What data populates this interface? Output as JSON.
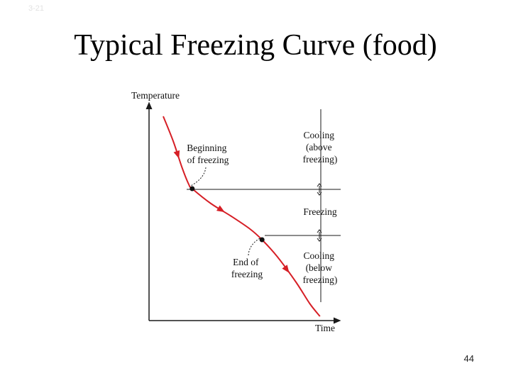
{
  "slide": {
    "code": "3-21",
    "title": "Typical Freezing Curve (food)",
    "page_number": "44"
  },
  "chart_data": {
    "type": "line",
    "title": "",
    "xlabel": "Time",
    "ylabel": "Temperature",
    "series": [
      {
        "x": [
          0.0,
          0.06,
          0.11,
          0.15,
          0.17,
          0.28,
          0.4,
          0.51,
          0.58,
          0.67,
          0.78,
          0.86,
          0.92
        ],
        "y": [
          0.96,
          0.84,
          0.72,
          0.64,
          0.62,
          0.55,
          0.49,
          0.43,
          0.38,
          0.3,
          0.18,
          0.08,
          0.02
        ]
      }
    ],
    "key_points": [
      {
        "name": "beginning-of-freezing",
        "x": 0.17,
        "y": 0.62
      },
      {
        "name": "end-of-freezing",
        "x": 0.58,
        "y": 0.38
      }
    ],
    "regions": [
      {
        "label": "Cooling\n(above\nfreezing)"
      },
      {
        "label": "Freezing"
      },
      {
        "label": "Cooling\n(below\nfreezing)"
      }
    ],
    "annotations": [
      {
        "label": "Beginning\nof freezing"
      },
      {
        "label": "End of\nfreezing"
      }
    ],
    "curve_color": "#d61f26",
    "axis_color": "#1a1a1a"
  }
}
